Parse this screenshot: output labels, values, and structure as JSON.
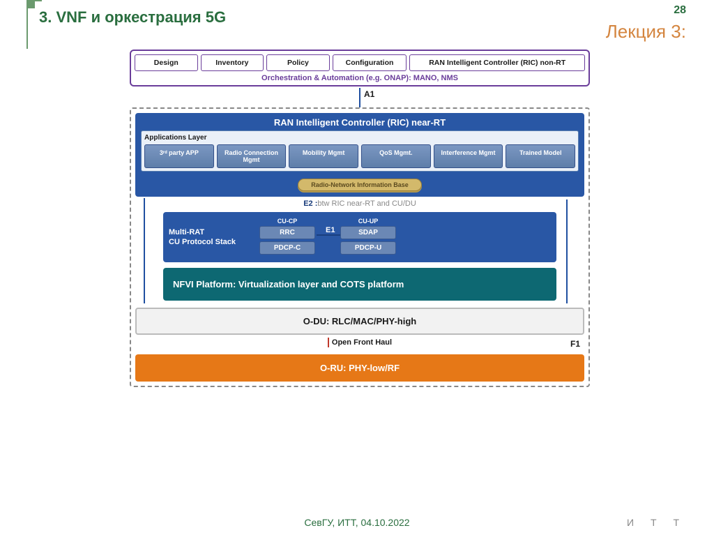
{
  "slide": {
    "page_number": "28",
    "title": "3. VNF и оркестрация 5G",
    "lecture_label": "Лекция 3:",
    "footer": "СевГУ, ИТТ, 04.10.2022",
    "itt": "И  Т  Т"
  },
  "colors": {
    "accent_green": "#2a6e3f",
    "accent_orange_text": "#d4853f",
    "purple": "#6a3d9a",
    "blue_dark": "#2957a5",
    "blue_line": "#1f4fa0",
    "teal": "#0d6872",
    "orange": "#e67817",
    "grey_border": "#bbbbbb",
    "dashed": "#888888",
    "rnib_bg": "#d3b96b"
  },
  "diagram": {
    "type": "layered-architecture",
    "orchestration": {
      "cells": [
        {
          "label": "Design",
          "flex": 1
        },
        {
          "label": "Inventory",
          "flex": 1
        },
        {
          "label": "Policy",
          "flex": 1
        },
        {
          "label": "Configuration",
          "flex": 1.2
        },
        {
          "label": "RAN Intelligent Controller (RIC) non-RT",
          "flex": 3
        }
      ],
      "footer": "Orchestration & Automation (e.g. ONAP): MANO, NMS"
    },
    "a1_label": "A1",
    "ric": {
      "title": "RAN Intelligent Controller (RIC) near-RT",
      "apps_layer_label": "Applications Layer",
      "apps": [
        "3ʳᵈ party APP",
        "Radio Connection Mgmt",
        "Mobility Mgmt",
        "QoS Mgmt.",
        "Interference Mgmt",
        "Trained Model"
      ],
      "rnib": "Radio-Network Information Base"
    },
    "e2": {
      "bold": "E2 :",
      "rest": "btw RIC near-RT and CU/DU"
    },
    "cu": {
      "left_label_1": "Multi-RAT",
      "left_label_2": "CU Protocol Stack",
      "cp_head": "CU-CP",
      "cp_blocks": [
        "RRC",
        "PDCP-C"
      ],
      "up_head": "CU-UP",
      "up_blocks": [
        "SDAP",
        "PDCP-U"
      ],
      "e1_label": "E1"
    },
    "nfvi": "NFVI Platform: Virtualization layer and COTS platform",
    "f1_label": "F1",
    "odu": "O-DU: RLC/MAC/PHY-high",
    "open_fronthaul": "Open Front Haul",
    "oru": "O-RU: PHY-low/RF"
  }
}
